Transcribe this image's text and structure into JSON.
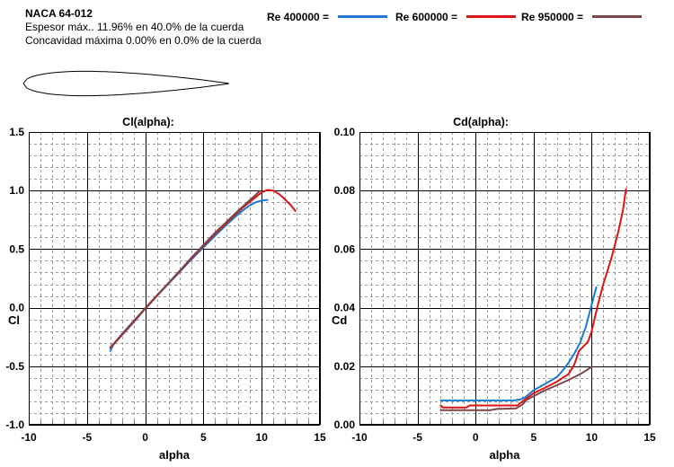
{
  "header": {
    "title": "NACA 64-012",
    "line1": "Espesor máx.. 11.96% en 40.0%  de la cuerda",
    "line2": "Concavidad máxima 0.00% en 0.0% de la cuerda"
  },
  "legend": {
    "items": [
      {
        "label": "Re 400000 =",
        "color": "#1A7AD2"
      },
      {
        "label": "Re 600000 =",
        "color": "#DC1414"
      },
      {
        "label": "Re 950000 =",
        "color": "#7D4646"
      }
    ]
  },
  "airfoil": {
    "name": "NACA 64-012",
    "max_thickness_pct": 11.96,
    "thickness_position_pct": 40.0,
    "max_camber_pct": 0.0
  },
  "chart_data": [
    {
      "type": "line",
      "title": "Cl(alpha):",
      "xlabel": "alpha",
      "ylabel": "Cl",
      "xlim": [
        -10,
        15
      ],
      "ylim": [
        -1.0,
        1.5
      ],
      "x_major": 5,
      "x_minor": 1,
      "y_major": 0.5,
      "y_minor": 0.1,
      "grid": true,
      "x_ticks": [
        {
          "v": -10,
          "label": "-10"
        },
        {
          "v": -5,
          "label": "-5"
        },
        {
          "v": 0,
          "label": "0"
        },
        {
          "v": 5,
          "label": "5"
        },
        {
          "v": 10,
          "label": "10"
        },
        {
          "v": 15,
          "label": "15"
        }
      ],
      "y_ticks": [
        {
          "v": 1.5,
          "label": "1.5"
        },
        {
          "v": 1.0,
          "label": "1.0"
        },
        {
          "v": 0.5,
          "label": "0.5"
        },
        {
          "v": 0.0,
          "label": "0.0"
        },
        {
          "v": -0.5,
          "label": "-0.5"
        },
        {
          "v": -1.0,
          "label": "-1.0"
        }
      ],
      "series": [
        {
          "name": "Re 400000",
          "color": "#1A7AD2",
          "points": [
            [
              -3,
              -0.37
            ],
            [
              -2.7,
              -0.31
            ],
            [
              -2,
              -0.225
            ],
            [
              -1,
              -0.115
            ],
            [
              0,
              -0.005
            ],
            [
              1,
              0.1
            ],
            [
              2,
              0.205
            ],
            [
              3,
              0.31
            ],
            [
              4,
              0.415
            ],
            [
              5,
              0.515
            ],
            [
              6,
              0.615
            ],
            [
              7,
              0.71
            ],
            [
              7.5,
              0.755
            ],
            [
              8,
              0.8
            ],
            [
              8.5,
              0.84
            ],
            [
              9,
              0.875
            ],
            [
              9.5,
              0.9
            ],
            [
              10,
              0.915
            ],
            [
              10.5,
              0.92
            ]
          ]
        },
        {
          "name": "Re 600000",
          "color": "#DC1414",
          "points": [
            [
              -3,
              -0.34
            ],
            [
              -2,
              -0.23
            ],
            [
              -1,
              -0.12
            ],
            [
              0,
              -0.005
            ],
            [
              1,
              0.105
            ],
            [
              2,
              0.21
            ],
            [
              3,
              0.315
            ],
            [
              4,
              0.425
            ],
            [
              5,
              0.53
            ],
            [
              6,
              0.63
            ],
            [
              7,
              0.725
            ],
            [
              8,
              0.82
            ],
            [
              8.5,
              0.865
            ],
            [
              9,
              0.905
            ],
            [
              9.5,
              0.945
            ],
            [
              10,
              0.985
            ],
            [
              10.5,
              1.005
            ],
            [
              11,
              1.0
            ],
            [
              11.5,
              0.97
            ],
            [
              12,
              0.925
            ],
            [
              12.5,
              0.875
            ],
            [
              12.9,
              0.825
            ]
          ]
        },
        {
          "name": "Re 950000",
          "color": "#7D4646",
          "points": [
            [
              -3,
              -0.345
            ],
            [
              -2,
              -0.235
            ],
            [
              -1,
              -0.125
            ],
            [
              0,
              -0.01
            ],
            [
              1,
              0.1
            ],
            [
              2,
              0.21
            ],
            [
              3,
              0.32
            ],
            [
              4,
              0.43
            ],
            [
              5,
              0.535
            ],
            [
              6,
              0.64
            ],
            [
              7,
              0.735
            ],
            [
              8,
              0.83
            ],
            [
              8.5,
              0.875
            ],
            [
              9,
              0.92
            ],
            [
              9.4,
              0.955
            ],
            [
              9.8,
              0.995
            ]
          ]
        }
      ]
    },
    {
      "type": "line",
      "title": "Cd(alpha):",
      "xlabel": "alpha",
      "ylabel": "Cd",
      "xlim": [
        -10,
        15
      ],
      "ylim": [
        0.0,
        0.1
      ],
      "x_major": 5,
      "x_minor": 1,
      "y_major": 0.02,
      "y_minor": 0.004,
      "grid": true,
      "x_ticks": [
        {
          "v": -10,
          "label": "-10"
        },
        {
          "v": -5,
          "label": "-5"
        },
        {
          "v": 0,
          "label": "0"
        },
        {
          "v": 5,
          "label": "5"
        },
        {
          "v": 10,
          "label": "10"
        },
        {
          "v": 15,
          "label": "15"
        }
      ],
      "y_ticks": [
        {
          "v": 0.1,
          "label": "0.10"
        },
        {
          "v": 0.08,
          "label": "0.08"
        },
        {
          "v": 0.06,
          "label": "0.06"
        },
        {
          "v": 0.04,
          "label": "0.04"
        },
        {
          "v": 0.02,
          "label": "0.02"
        },
        {
          "v": 0.0,
          "label": "0.00"
        }
      ],
      "series": [
        {
          "name": "Re 400000",
          "color": "#1A7AD2",
          "points": [
            [
              -3,
              0.0083
            ],
            [
              0,
              0.0083
            ],
            [
              3.3,
              0.0083
            ],
            [
              3.9,
              0.0087
            ],
            [
              4.3,
              0.0095
            ],
            [
              5,
              0.0118
            ],
            [
              6,
              0.014
            ],
            [
              7,
              0.0163
            ],
            [
              7.5,
              0.0185
            ],
            [
              8,
              0.0212
            ],
            [
              8.5,
              0.0243
            ],
            [
              9,
              0.028
            ],
            [
              9.5,
              0.0335
            ],
            [
              10,
              0.041
            ],
            [
              10.4,
              0.047
            ]
          ]
        },
        {
          "name": "Re 600000",
          "color": "#DC1414",
          "points": [
            [
              -3,
              0.0066
            ],
            [
              -2.8,
              0.0059
            ],
            [
              -0.8,
              0.0059
            ],
            [
              -0.5,
              0.0066
            ],
            [
              3.6,
              0.0066
            ],
            [
              4.2,
              0.0085
            ],
            [
              5,
              0.0108
            ],
            [
              6,
              0.0127
            ],
            [
              7,
              0.0147
            ],
            [
              8,
              0.0173
            ],
            [
              8.5,
              0.0205
            ],
            [
              8.9,
              0.0252
            ],
            [
              9.4,
              0.0272
            ],
            [
              9.7,
              0.0285
            ],
            [
              10,
              0.032
            ],
            [
              10.5,
              0.0405
            ],
            [
              11,
              0.048
            ],
            [
              11.7,
              0.057
            ],
            [
              12.3,
              0.066
            ],
            [
              12.7,
              0.0735
            ],
            [
              12.95,
              0.0805
            ]
          ]
        },
        {
          "name": "Re 950000",
          "color": "#7D4646",
          "points": [
            [
              -3,
              0.005
            ],
            [
              1.3,
              0.005
            ],
            [
              1.8,
              0.0054
            ],
            [
              3.5,
              0.0056
            ],
            [
              4,
              0.0068
            ],
            [
              4.4,
              0.0085
            ],
            [
              5,
              0.0098
            ],
            [
              6,
              0.0118
            ],
            [
              7,
              0.0135
            ],
            [
              8,
              0.0153
            ],
            [
              9,
              0.0173
            ],
            [
              9.5,
              0.0185
            ],
            [
              10,
              0.0198
            ]
          ]
        }
      ]
    }
  ]
}
